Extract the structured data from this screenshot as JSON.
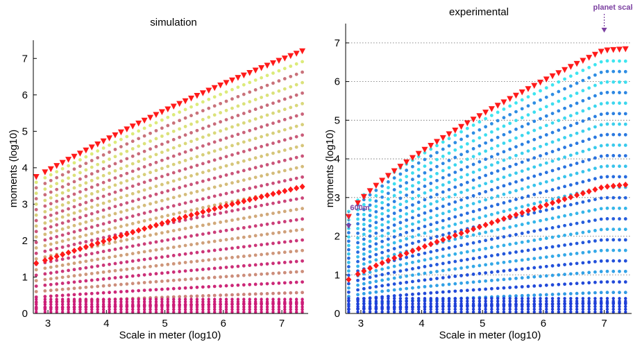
{
  "chart_data": [
    {
      "type": "scatter",
      "title": "simulation",
      "xlabel": "Scale in meter (log10)",
      "ylabel": "moments (log10)",
      "xlim": [
        2.75,
        7.45
      ],
      "ylim": [
        0,
        7.5
      ],
      "xticks": [
        3,
        4,
        5,
        6,
        7
      ],
      "yticks": [
        0,
        1,
        2,
        3,
        4,
        5,
        6,
        7
      ],
      "grid": false,
      "x_start": 2.8,
      "x_points": [
        2.8,
        2.95,
        3.05,
        3.15,
        3.25,
        3.35,
        3.45,
        3.55,
        3.65,
        3.75,
        3.85,
        3.95,
        4.05,
        4.15,
        4.25,
        4.35,
        4.45,
        4.55,
        4.65,
        4.75,
        4.85,
        4.95,
        5.05,
        5.15,
        5.25,
        5.35,
        5.45,
        5.55,
        5.65,
        5.75,
        5.85,
        5.95,
        6.05,
        6.15,
        6.25,
        6.35,
        6.45,
        6.55,
        6.65,
        6.75,
        6.85,
        6.95,
        7.05,
        7.15,
        7.25,
        7.35
      ],
      "moment_order_range": [
        0.1,
        2.5
      ],
      "moment_order_step": 0.1,
      "max_moment_curve": {
        "start": 3.75,
        "end": 7.2,
        "curvature": 0.12
      },
      "diamond_curve": {
        "start": 1.38,
        "end": 3.48,
        "peak": 3.5
      },
      "colors": {
        "low": "#cc1c78",
        "mid": "#c97a7a",
        "high": "#ddf07a",
        "triangle": "#ff1a1a",
        "diamond": "#ff1a1a"
      }
    },
    {
      "type": "scatter",
      "title": "experimental",
      "xlabel": "Scale in meter (log10)",
      "ylabel": "moments (log10)",
      "xlim": [
        2.75,
        7.45
      ],
      "ylim": [
        0,
        7.5
      ],
      "xticks": [
        3,
        4,
        5,
        6,
        7
      ],
      "yticks": [
        0,
        1,
        2,
        3,
        4,
        5,
        6,
        7
      ],
      "grid": true,
      "x_points": [
        2.8,
        2.95,
        3.05,
        3.15,
        3.25,
        3.35,
        3.45,
        3.55,
        3.65,
        3.75,
        3.85,
        3.95,
        4.05,
        4.15,
        4.25,
        4.35,
        4.45,
        4.55,
        4.65,
        4.75,
        4.85,
        4.95,
        5.05,
        5.15,
        5.25,
        5.35,
        5.45,
        5.55,
        5.65,
        5.75,
        5.85,
        5.95,
        6.05,
        6.15,
        6.25,
        6.35,
        6.45,
        6.55,
        6.65,
        6.75,
        6.85,
        6.95,
        7.05,
        7.15,
        7.25,
        7.35
      ],
      "max_moment_curve": {
        "start": 2.5,
        "end": 7.08
      },
      "diamond_curve": {
        "start": 0.88,
        "end": 3.45
      },
      "annotations": [
        {
          "text": "600m",
          "x": 2.8,
          "y": 2.6,
          "color": "#7b3fa0"
        },
        {
          "text": "planet scale",
          "x": 7.0,
          "y": 7.25,
          "color": "#7b3fa0"
        }
      ],
      "colors": {
        "low": "#1f3fd8",
        "high": "#3fe8f0",
        "triangle": "#ff1a1a",
        "diamond": "#ff1a1a"
      }
    }
  ]
}
